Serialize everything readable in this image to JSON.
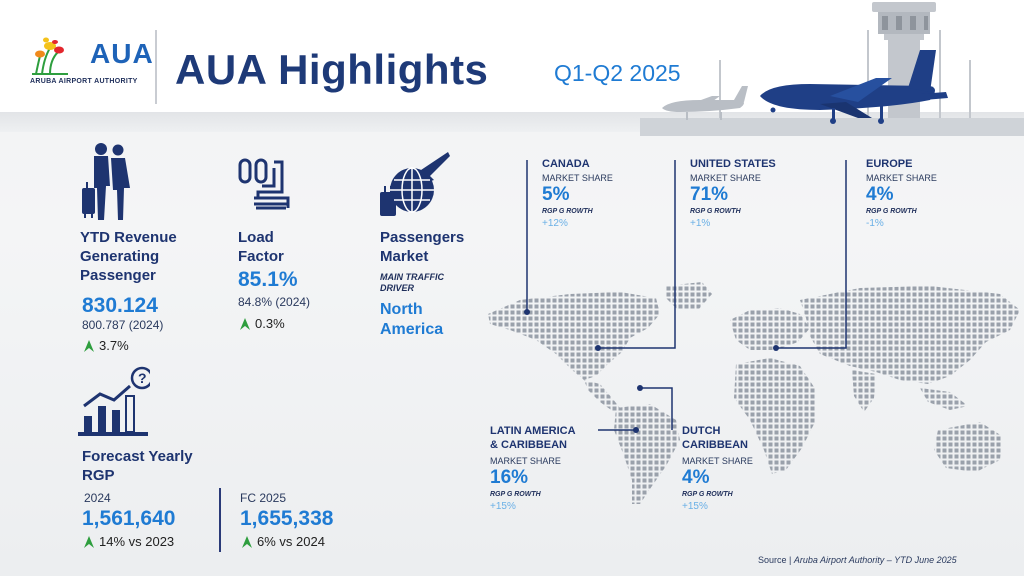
{
  "header": {
    "logo_text": "AUA",
    "logo_subtitle": "ARUBA AIRPORT AUTHORITY",
    "title": "AUA Highlights",
    "period": "Q1-Q2 2025"
  },
  "revenue_passenger": {
    "label_lines": [
      "YTD Revenue",
      "Generating",
      "Passenger"
    ],
    "value": "830.124",
    "previous": "800.787 (2024)",
    "change": "3.7%"
  },
  "load_factor": {
    "label_lines": [
      "Load",
      "Factor"
    ],
    "value": "85.1%",
    "previous": "84.8% (2024)",
    "change": "0.3%"
  },
  "passengers_market": {
    "label_lines": [
      "Passengers",
      "Market"
    ],
    "sublabel_lines": [
      "MAIN TRAFFIC",
      "DRIVER"
    ],
    "value_lines": [
      "North",
      "America"
    ]
  },
  "forecast": {
    "label_lines": [
      "Forecast Yearly",
      "RGP"
    ],
    "left": {
      "year": "2024",
      "value": "1,561,640",
      "change": "14% vs 2023"
    },
    "right": {
      "year": "FC 2025",
      "value": "1,655,338",
      "change": "6% vs 2024"
    }
  },
  "regions": [
    {
      "name_lines": [
        "CANADA"
      ],
      "ms_label": "MARKET SHARE",
      "ms_value": "5%",
      "rg_label": "RGP G ROWTH",
      "rg_value": "+12%"
    },
    {
      "name_lines": [
        "UNITED STATES"
      ],
      "ms_label": "MARKET SHARE",
      "ms_value": "71%",
      "rg_label": "RGP G ROWTH",
      "rg_value": "+1%"
    },
    {
      "name_lines": [
        "EUROPE"
      ],
      "ms_label": "MARKET SHARE",
      "ms_value": "4%",
      "rg_label": "RGP G ROWTH",
      "rg_value": "-1%"
    },
    {
      "name_lines": [
        "LATIN AMERICA",
        "& CARIBBEAN"
      ],
      "ms_label": "MARKET SHARE",
      "ms_value": "16%",
      "rg_label": "RGP G ROWTH",
      "rg_value": "+15%"
    },
    {
      "name_lines": [
        "DUTCH",
        "CARIBBEAN"
      ],
      "ms_label": "MARKET SHARE",
      "ms_value": "4%",
      "rg_label": "RGP G ROWTH",
      "rg_value": "+15%"
    }
  ],
  "source": {
    "prefix": "Source | ",
    "text": "Aruba Airport Authority – YTD June 2025"
  },
  "colors": {
    "navy": "#1e3470",
    "accent_blue": "#1f7bd3",
    "light_blue": "#6ab0e6",
    "arrow_green": "#2e9e3e"
  }
}
